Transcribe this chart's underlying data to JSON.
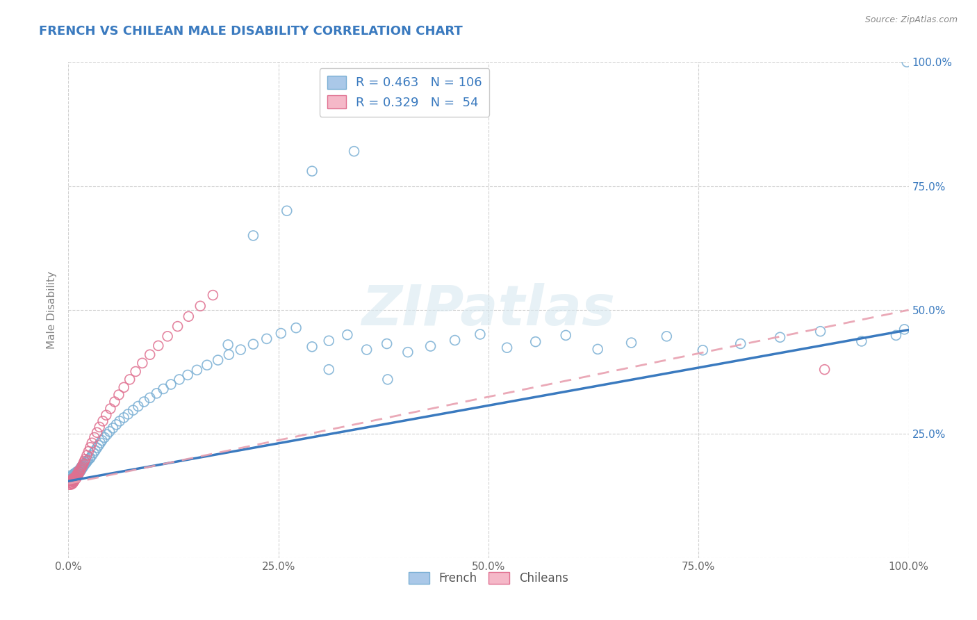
{
  "title": "FRENCH VS CHILEAN MALE DISABILITY CORRELATION CHART",
  "source": "Source: ZipAtlas.com",
  "ylabel": "Male Disability",
  "title_color": "#3a7abf",
  "background_color": "#ffffff",
  "grid_color": "#cccccc",
  "watermark": "ZIPatlas",
  "french_color": "#aac8e8",
  "french_edge": "#7aafd4",
  "chilean_color": "#f5b8c8",
  "chilean_edge": "#e07090",
  "french_line_color": "#3a7abf",
  "chilean_line_color": "#e8a0b0",
  "right_tick_color": "#3a7abf",
  "xlim": [
    0,
    1
  ],
  "ylim": [
    0,
    1
  ],
  "xticks": [
    0,
    0.25,
    0.5,
    0.75,
    1.0
  ],
  "yticks": [
    0,
    0.25,
    0.5,
    0.75,
    1.0
  ],
  "xtick_labels": [
    "0.0%",
    "25.0%",
    "50.0%",
    "75.0%",
    "100.0%"
  ],
  "right_tick_labels": [
    "",
    "25.0%",
    "50.0%",
    "75.0%",
    "100.0%"
  ],
  "french_x": [
    0.002,
    0.003,
    0.004,
    0.004,
    0.005,
    0.005,
    0.005,
    0.006,
    0.006,
    0.006,
    0.007,
    0.007,
    0.007,
    0.007,
    0.008,
    0.008,
    0.008,
    0.009,
    0.009,
    0.009,
    0.01,
    0.01,
    0.01,
    0.011,
    0.011,
    0.012,
    0.012,
    0.013,
    0.013,
    0.014,
    0.014,
    0.015,
    0.015,
    0.016,
    0.016,
    0.017,
    0.018,
    0.019,
    0.02,
    0.021,
    0.022,
    0.023,
    0.025,
    0.026,
    0.028,
    0.03,
    0.032,
    0.034,
    0.036,
    0.038,
    0.04,
    0.043,
    0.046,
    0.049,
    0.053,
    0.057,
    0.061,
    0.066,
    0.071,
    0.077,
    0.083,
    0.09,
    0.097,
    0.105,
    0.113,
    0.122,
    0.132,
    0.142,
    0.153,
    0.165,
    0.178,
    0.191,
    0.205,
    0.22,
    0.236,
    0.253,
    0.271,
    0.29,
    0.31,
    0.332,
    0.355,
    0.379,
    0.404,
    0.431,
    0.46,
    0.49,
    0.522,
    0.556,
    0.592,
    0.63,
    0.67,
    0.712,
    0.755,
    0.8,
    0.847,
    0.895,
    0.944,
    0.985,
    0.995,
    0.998,
    0.31,
    0.38,
    0.29,
    0.34,
    0.26,
    0.22,
    0.19
  ],
  "french_y": [
    0.155,
    0.16,
    0.155,
    0.165,
    0.158,
    0.162,
    0.168,
    0.156,
    0.16,
    0.164,
    0.158,
    0.163,
    0.167,
    0.17,
    0.16,
    0.165,
    0.169,
    0.162,
    0.167,
    0.172,
    0.164,
    0.169,
    0.174,
    0.167,
    0.172,
    0.17,
    0.175,
    0.172,
    0.177,
    0.175,
    0.18,
    0.177,
    0.182,
    0.18,
    0.185,
    0.183,
    0.185,
    0.188,
    0.19,
    0.192,
    0.194,
    0.197,
    0.2,
    0.202,
    0.207,
    0.212,
    0.217,
    0.222,
    0.227,
    0.232,
    0.237,
    0.243,
    0.249,
    0.255,
    0.262,
    0.269,
    0.276,
    0.283,
    0.29,
    0.298,
    0.306,
    0.315,
    0.323,
    0.332,
    0.341,
    0.35,
    0.36,
    0.369,
    0.379,
    0.389,
    0.399,
    0.41,
    0.42,
    0.431,
    0.442,
    0.453,
    0.464,
    0.426,
    0.438,
    0.45,
    0.42,
    0.432,
    0.415,
    0.427,
    0.439,
    0.451,
    0.424,
    0.436,
    0.449,
    0.421,
    0.434,
    0.447,
    0.419,
    0.432,
    0.445,
    0.457,
    0.437,
    0.449,
    0.461,
    1.0,
    0.38,
    0.36,
    0.78,
    0.82,
    0.7,
    0.65,
    0.43
  ],
  "chilean_x": [
    0.001,
    0.002,
    0.003,
    0.003,
    0.004,
    0.004,
    0.005,
    0.005,
    0.005,
    0.006,
    0.006,
    0.007,
    0.007,
    0.008,
    0.008,
    0.009,
    0.009,
    0.01,
    0.01,
    0.011,
    0.012,
    0.012,
    0.013,
    0.014,
    0.015,
    0.016,
    0.017,
    0.018,
    0.019,
    0.02,
    0.022,
    0.024,
    0.026,
    0.028,
    0.031,
    0.034,
    0.037,
    0.041,
    0.045,
    0.05,
    0.055,
    0.06,
    0.066,
    0.073,
    0.08,
    0.088,
    0.097,
    0.107,
    0.118,
    0.13,
    0.143,
    0.157,
    0.172,
    0.9
  ],
  "chilean_y": [
    0.148,
    0.152,
    0.148,
    0.155,
    0.15,
    0.157,
    0.15,
    0.155,
    0.16,
    0.153,
    0.158,
    0.155,
    0.16,
    0.158,
    0.163,
    0.16,
    0.165,
    0.163,
    0.168,
    0.166,
    0.17,
    0.175,
    0.173,
    0.177,
    0.18,
    0.184,
    0.187,
    0.191,
    0.195,
    0.199,
    0.207,
    0.215,
    0.223,
    0.232,
    0.243,
    0.253,
    0.264,
    0.276,
    0.288,
    0.301,
    0.315,
    0.329,
    0.344,
    0.36,
    0.376,
    0.393,
    0.41,
    0.428,
    0.447,
    0.467,
    0.487,
    0.508,
    0.53,
    0.38
  ]
}
